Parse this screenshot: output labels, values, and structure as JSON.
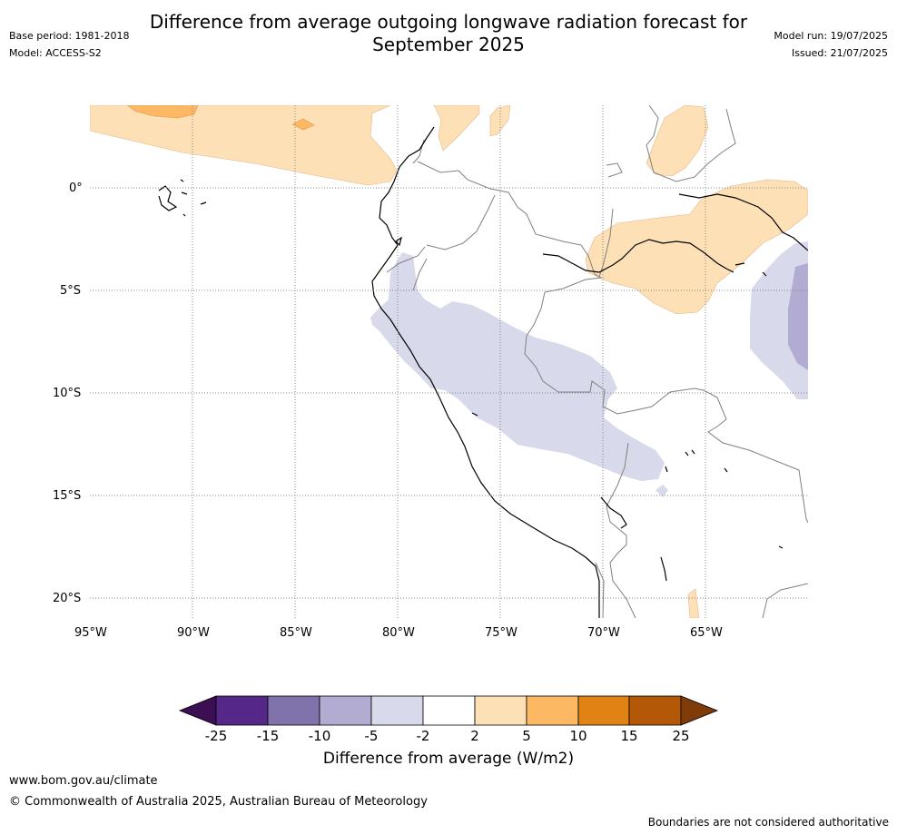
{
  "header": {
    "title_line1": "Difference from average outgoing longwave radiation forecast for",
    "title_line2": "September 2025",
    "base_period": "Base period: 1981-2018",
    "model": "Model: ACCESS-S2",
    "model_run": "Model run: 19/07/2025",
    "issued": "Issued: 21/07/2025"
  },
  "map": {
    "lon_ticks": [
      "95°W",
      "90°W",
      "85°W",
      "80°W",
      "75°W",
      "70°W",
      "65°W"
    ],
    "lat_ticks": [
      "0°",
      "5°S",
      "10°S",
      "15°S",
      "20°S"
    ],
    "region": "Western South America (Peru, Ecuador, Bolivia, Brazil)",
    "anomaly_fields": [
      {
        "area": "north-west Pacific / Galapagos north",
        "category": "2 to 5"
      },
      {
        "area": "northern Colombia coast",
        "category": "2 to 5"
      },
      {
        "area": "Venezuela / Guyana",
        "category": "2 to 5"
      },
      {
        "area": "western Amazon (Brazil)",
        "category": "2 to 5"
      },
      {
        "area": "eastern Pacific near 5°N",
        "category": "5 to 10"
      },
      {
        "area": "coastal Peru to southern Peru",
        "category": "-5 to -2"
      },
      {
        "area": "western Brazil near 65°W",
        "category": "-5 to -2"
      },
      {
        "area": "western Brazil core",
        "category": "-10 to -5"
      }
    ]
  },
  "colorbar": {
    "labels": [
      "-25",
      "-15",
      "-10",
      "-5",
      "-2",
      "2",
      "5",
      "10",
      "15",
      "25"
    ],
    "colors": [
      "#3b0f51",
      "#542788",
      "#8073ac",
      "#b2abd2",
      "#d8daeb",
      "#ffffff",
      "#fee0b6",
      "#fdb863",
      "#e08214",
      "#b35806",
      "#7f3b08"
    ],
    "title": "Difference from average (W/m2)"
  },
  "footer": {
    "website": "www.bom.gov.au/climate",
    "copyright": "© Commonwealth of Australia 2025, Australian Bureau of Meteorology",
    "disclaimer": "Boundaries are not considered authoritative"
  }
}
